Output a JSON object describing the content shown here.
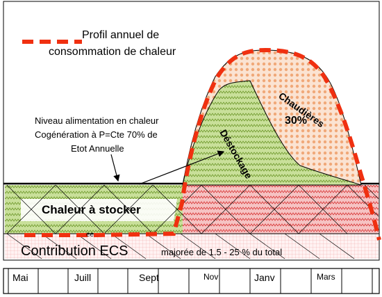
{
  "legend": {
    "line1": "Profil annuel de",
    "line2": "consommation de chaleur",
    "line_color": "#f03010"
  },
  "labels": {
    "cogeneration_line1": "Niveau alimentation en chaleur",
    "cogeneration_line2": "Cogénération  à P=Cte   70% de",
    "cogeneration_line3": "Etot Annuelle",
    "chaudieres": "Chaudières",
    "chaudieres_pct": "30%",
    "destockage": "Déstockage",
    "chaleur_a_stocker": "Chaleur à stocker",
    "contribution_main": "Contribution ECS",
    "contribution_sub": "majorée de 1.5  -   25 % du total",
    "small_mark": "ee"
  },
  "months": [
    "Mai",
    "Juill",
    "Sept",
    "Nov",
    "Janv",
    "Mars"
  ],
  "colors": {
    "green_area": "#b6d47a",
    "red_hatch": "#e05050",
    "orange_area": "#f5c8a8",
    "ecs_band": "#fde8e8",
    "profile": "#f03010"
  }
}
